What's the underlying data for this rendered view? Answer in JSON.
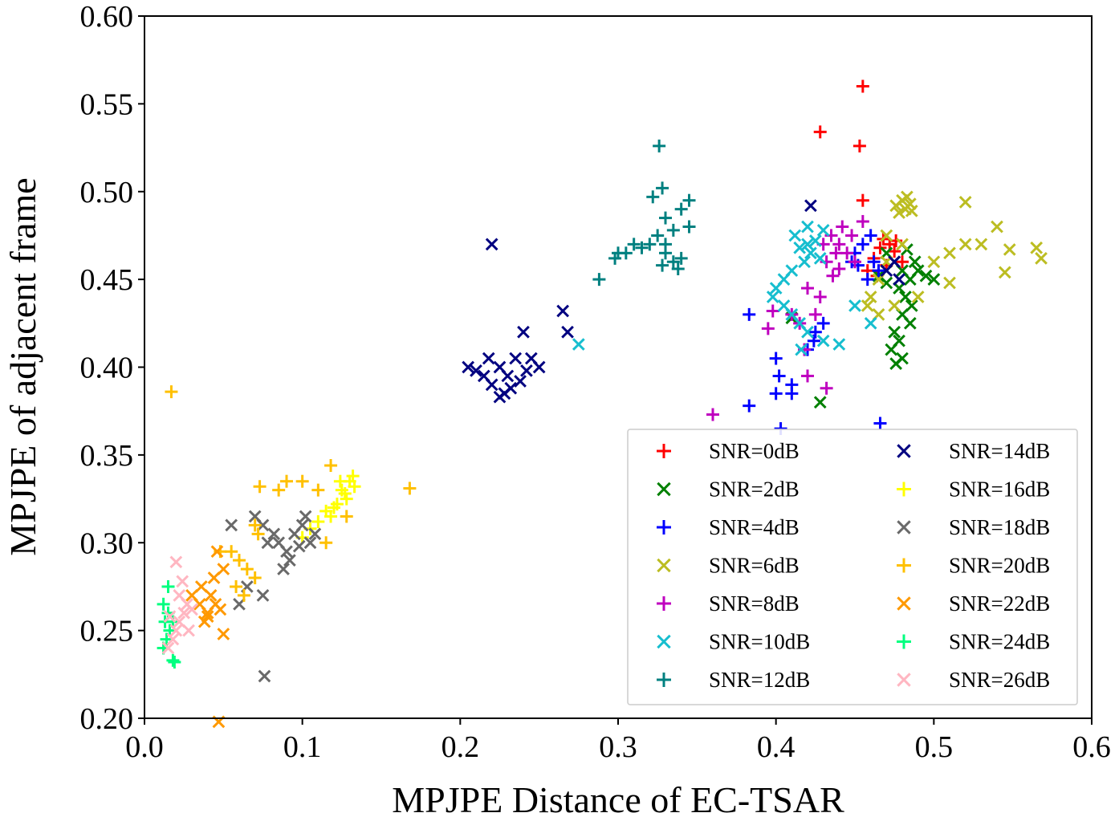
{
  "chart_data": {
    "type": "scatter",
    "title": "",
    "xlabel": "MPJPE Distance of EC-TSAR",
    "ylabel": "MPJPE of adjacent frame",
    "xlim": [
      0.0,
      0.6
    ],
    "ylim": [
      0.2,
      0.6
    ],
    "xticks": [
      "0.0",
      "0.1",
      "0.2",
      "0.3",
      "0.4",
      "0.5",
      "0.6"
    ],
    "yticks": [
      "0.20",
      "0.25",
      "0.30",
      "0.35",
      "0.40",
      "0.45",
      "0.50",
      "0.55",
      "0.60"
    ],
    "grid": false,
    "legend_position": "lower-right",
    "legend_columns": 2,
    "series": [
      {
        "name": "SNR=0dB",
        "marker": "+",
        "color": "#ff0000",
        "points": [
          [
            0.455,
            0.56
          ],
          [
            0.428,
            0.534
          ],
          [
            0.453,
            0.526
          ],
          [
            0.455,
            0.495
          ],
          [
            0.468,
            0.473
          ],
          [
            0.472,
            0.47
          ],
          [
            0.466,
            0.468
          ],
          [
            0.462,
            0.462
          ],
          [
            0.475,
            0.466
          ],
          [
            0.458,
            0.455
          ],
          [
            0.47,
            0.458
          ],
          [
            0.464,
            0.452
          ],
          [
            0.48,
            0.46
          ],
          [
            0.476,
            0.472
          ]
        ]
      },
      {
        "name": "SNR=2dB",
        "marker": "x",
        "color": "#008000",
        "points": [
          [
            0.47,
            0.465
          ],
          [
            0.475,
            0.46
          ],
          [
            0.48,
            0.455
          ],
          [
            0.485,
            0.45
          ],
          [
            0.49,
            0.455
          ],
          [
            0.495,
            0.452
          ],
          [
            0.5,
            0.45
          ],
          [
            0.478,
            0.445
          ],
          [
            0.482,
            0.44
          ],
          [
            0.486,
            0.435
          ],
          [
            0.48,
            0.43
          ],
          [
            0.475,
            0.42
          ],
          [
            0.478,
            0.415
          ],
          [
            0.473,
            0.41
          ],
          [
            0.48,
            0.405
          ],
          [
            0.476,
            0.402
          ],
          [
            0.485,
            0.425
          ],
          [
            0.47,
            0.448
          ],
          [
            0.465,
            0.452
          ],
          [
            0.41,
            0.428
          ],
          [
            0.428,
            0.38
          ],
          [
            0.488,
            0.46
          ],
          [
            0.483,
            0.467
          ]
        ]
      },
      {
        "name": "SNR=4dB",
        "marker": "+",
        "color": "#0000ff",
        "points": [
          [
            0.383,
            0.43
          ],
          [
            0.383,
            0.378
          ],
          [
            0.4,
            0.385
          ],
          [
            0.4,
            0.405
          ],
          [
            0.402,
            0.395
          ],
          [
            0.41,
            0.39
          ],
          [
            0.41,
            0.385
          ],
          [
            0.42,
            0.41
          ],
          [
            0.425,
            0.42
          ],
          [
            0.43,
            0.425
          ],
          [
            0.424,
            0.415
          ],
          [
            0.448,
            0.46
          ],
          [
            0.45,
            0.465
          ],
          [
            0.455,
            0.47
          ],
          [
            0.46,
            0.475
          ],
          [
            0.462,
            0.46
          ],
          [
            0.465,
            0.455
          ],
          [
            0.458,
            0.45
          ],
          [
            0.466,
            0.368
          ],
          [
            0.403,
            0.365
          ],
          [
            0.452,
            0.458
          ]
        ]
      },
      {
        "name": "SNR=6dB",
        "marker": "x",
        "color": "#bcbd22",
        "points": [
          [
            0.48,
            0.495
          ],
          [
            0.482,
            0.49
          ],
          [
            0.485,
            0.493
          ],
          [
            0.478,
            0.488
          ],
          [
            0.483,
            0.497
          ],
          [
            0.476,
            0.492
          ],
          [
            0.486,
            0.489
          ],
          [
            0.52,
            0.494
          ],
          [
            0.54,
            0.48
          ],
          [
            0.52,
            0.47
          ],
          [
            0.53,
            0.47
          ],
          [
            0.548,
            0.467
          ],
          [
            0.565,
            0.468
          ],
          [
            0.568,
            0.462
          ],
          [
            0.545,
            0.454
          ],
          [
            0.51,
            0.465
          ],
          [
            0.5,
            0.46
          ],
          [
            0.51,
            0.448
          ],
          [
            0.47,
            0.46
          ],
          [
            0.465,
            0.45
          ],
          [
            0.46,
            0.44
          ],
          [
            0.458,
            0.435
          ],
          [
            0.465,
            0.43
          ],
          [
            0.475,
            0.435
          ],
          [
            0.49,
            0.44
          ],
          [
            0.48,
            0.47
          ],
          [
            0.47,
            0.475
          ]
        ]
      },
      {
        "name": "SNR=8dB",
        "marker": "+",
        "color": "#bf00bf",
        "points": [
          [
            0.43,
            0.47
          ],
          [
            0.435,
            0.475
          ],
          [
            0.44,
            0.47
          ],
          [
            0.445,
            0.465
          ],
          [
            0.45,
            0.46
          ],
          [
            0.438,
            0.465
          ],
          [
            0.442,
            0.48
          ],
          [
            0.448,
            0.475
          ],
          [
            0.455,
            0.483
          ],
          [
            0.432,
            0.46
          ],
          [
            0.436,
            0.452
          ],
          [
            0.42,
            0.445
          ],
          [
            0.425,
            0.43
          ],
          [
            0.415,
            0.425
          ],
          [
            0.395,
            0.422
          ],
          [
            0.398,
            0.432
          ],
          [
            0.41,
            0.43
          ],
          [
            0.418,
            0.41
          ],
          [
            0.42,
            0.395
          ],
          [
            0.432,
            0.388
          ],
          [
            0.36,
            0.373
          ],
          [
            0.44,
            0.456
          ],
          [
            0.428,
            0.44
          ]
        ]
      },
      {
        "name": "SNR=10dB",
        "marker": "x",
        "color": "#17becf",
        "points": [
          [
            0.42,
            0.47
          ],
          [
            0.422,
            0.465
          ],
          [
            0.418,
            0.46
          ],
          [
            0.425,
            0.472
          ],
          [
            0.415,
            0.468
          ],
          [
            0.412,
            0.475
          ],
          [
            0.428,
            0.462
          ],
          [
            0.41,
            0.455
          ],
          [
            0.405,
            0.45
          ],
          [
            0.4,
            0.445
          ],
          [
            0.398,
            0.44
          ],
          [
            0.405,
            0.435
          ],
          [
            0.41,
            0.43
          ],
          [
            0.415,
            0.425
          ],
          [
            0.42,
            0.42
          ],
          [
            0.416,
            0.41
          ],
          [
            0.43,
            0.415
          ],
          [
            0.44,
            0.413
          ],
          [
            0.45,
            0.435
          ],
          [
            0.46,
            0.425
          ],
          [
            0.275,
            0.413
          ],
          [
            0.42,
            0.48
          ],
          [
            0.43,
            0.478
          ]
        ]
      },
      {
        "name": "SNR=12dB",
        "marker": "+",
        "color": "#008080",
        "points": [
          [
            0.326,
            0.526
          ],
          [
            0.328,
            0.502
          ],
          [
            0.322,
            0.497
          ],
          [
            0.345,
            0.495
          ],
          [
            0.34,
            0.49
          ],
          [
            0.33,
            0.485
          ],
          [
            0.335,
            0.478
          ],
          [
            0.325,
            0.475
          ],
          [
            0.33,
            0.47
          ],
          [
            0.32,
            0.47
          ],
          [
            0.315,
            0.468
          ],
          [
            0.31,
            0.47
          ],
          [
            0.305,
            0.465
          ],
          [
            0.3,
            0.465
          ],
          [
            0.298,
            0.462
          ],
          [
            0.33,
            0.465
          ],
          [
            0.335,
            0.46
          ],
          [
            0.34,
            0.462
          ],
          [
            0.328,
            0.458
          ],
          [
            0.338,
            0.456
          ],
          [
            0.288,
            0.45
          ],
          [
            0.345,
            0.48
          ]
        ]
      },
      {
        "name": "SNR=14dB",
        "marker": "x",
        "color": "#000080",
        "points": [
          [
            0.22,
            0.47
          ],
          [
            0.265,
            0.432
          ],
          [
            0.268,
            0.42
          ],
          [
            0.24,
            0.42
          ],
          [
            0.225,
            0.4
          ],
          [
            0.23,
            0.395
          ],
          [
            0.235,
            0.405
          ],
          [
            0.22,
            0.39
          ],
          [
            0.215,
            0.395
          ],
          [
            0.228,
            0.385
          ],
          [
            0.238,
            0.392
          ],
          [
            0.232,
            0.388
          ],
          [
            0.242,
            0.398
          ],
          [
            0.245,
            0.405
          ],
          [
            0.25,
            0.4
          ],
          [
            0.21,
            0.398
          ],
          [
            0.205,
            0.4
          ],
          [
            0.225,
            0.383
          ],
          [
            0.218,
            0.405
          ],
          [
            0.422,
            0.492
          ],
          [
            0.475,
            0.46
          ],
          [
            0.478,
            0.45
          ],
          [
            0.47,
            0.455
          ]
        ]
      },
      {
        "name": "SNR=16dB",
        "marker": "+",
        "color": "#ffff00",
        "points": [
          [
            0.13,
            0.335
          ],
          [
            0.125,
            0.33
          ],
          [
            0.128,
            0.325
          ],
          [
            0.12,
            0.32
          ],
          [
            0.118,
            0.315
          ],
          [
            0.132,
            0.338
          ],
          [
            0.127,
            0.328
          ],
          [
            0.122,
            0.322
          ],
          [
            0.115,
            0.318
          ],
          [
            0.11,
            0.312
          ],
          [
            0.105,
            0.308
          ],
          [
            0.1,
            0.303
          ],
          [
            0.133,
            0.332
          ],
          [
            0.124,
            0.335
          ]
        ]
      },
      {
        "name": "SNR=18dB",
        "marker": "x",
        "color": "#696969",
        "points": [
          [
            0.085,
            0.3
          ],
          [
            0.09,
            0.295
          ],
          [
            0.095,
            0.305
          ],
          [
            0.1,
            0.31
          ],
          [
            0.092,
            0.29
          ],
          [
            0.098,
            0.298
          ],
          [
            0.088,
            0.285
          ],
          [
            0.102,
            0.315
          ],
          [
            0.105,
            0.3
          ],
          [
            0.082,
            0.305
          ],
          [
            0.078,
            0.3
          ],
          [
            0.075,
            0.31
          ],
          [
            0.07,
            0.315
          ],
          [
            0.055,
            0.31
          ],
          [
            0.065,
            0.275
          ],
          [
            0.06,
            0.265
          ],
          [
            0.075,
            0.27
          ],
          [
            0.076,
            0.224
          ],
          [
            0.108,
            0.305
          ]
        ]
      },
      {
        "name": "SNR=20dB",
        "marker": "+",
        "color": "#ffc000",
        "points": [
          [
            0.017,
            0.386
          ],
          [
            0.168,
            0.331
          ],
          [
            0.118,
            0.344
          ],
          [
            0.073,
            0.332
          ],
          [
            0.085,
            0.33
          ],
          [
            0.09,
            0.335
          ],
          [
            0.1,
            0.335
          ],
          [
            0.11,
            0.33
          ],
          [
            0.06,
            0.29
          ],
          [
            0.058,
            0.275
          ],
          [
            0.065,
            0.285
          ],
          [
            0.07,
            0.28
          ],
          [
            0.055,
            0.295
          ],
          [
            0.063,
            0.27
          ],
          [
            0.07,
            0.31
          ],
          [
            0.072,
            0.305
          ],
          [
            0.115,
            0.3
          ],
          [
            0.048,
            0.295
          ],
          [
            0.128,
            0.315
          ]
        ]
      },
      {
        "name": "SNR=22dB",
        "marker": "x",
        "color": "#ff9900",
        "points": [
          [
            0.04,
            0.26
          ],
          [
            0.045,
            0.265
          ],
          [
            0.038,
            0.255
          ],
          [
            0.042,
            0.27
          ],
          [
            0.048,
            0.262
          ],
          [
            0.036,
            0.275
          ],
          [
            0.044,
            0.28
          ],
          [
            0.05,
            0.285
          ],
          [
            0.035,
            0.265
          ],
          [
            0.03,
            0.27
          ],
          [
            0.046,
            0.295
          ],
          [
            0.05,
            0.248
          ],
          [
            0.047,
            0.198
          ],
          [
            0.04,
            0.258
          ]
        ]
      },
      {
        "name": "SNR=24dB",
        "marker": "+",
        "color": "#00ff7f",
        "points": [
          [
            0.015,
            0.26
          ],
          [
            0.018,
            0.255
          ],
          [
            0.012,
            0.265
          ],
          [
            0.016,
            0.25
          ],
          [
            0.014,
            0.245
          ],
          [
            0.018,
            0.233
          ],
          [
            0.015,
            0.275
          ],
          [
            0.012,
            0.24
          ],
          [
            0.019,
            0.232
          ],
          [
            0.013,
            0.255
          ]
        ]
      },
      {
        "name": "SNR=26dB",
        "marker": "x",
        "color": "#ffb6c1",
        "points": [
          [
            0.02,
            0.25
          ],
          [
            0.022,
            0.255
          ],
          [
            0.025,
            0.26
          ],
          [
            0.018,
            0.245
          ],
          [
            0.015,
            0.24
          ],
          [
            0.027,
            0.265
          ],
          [
            0.02,
            0.289
          ],
          [
            0.024,
            0.278
          ],
          [
            0.03,
            0.262
          ],
          [
            0.028,
            0.25
          ],
          [
            0.016,
            0.258
          ],
          [
            0.022,
            0.27
          ]
        ]
      }
    ]
  }
}
